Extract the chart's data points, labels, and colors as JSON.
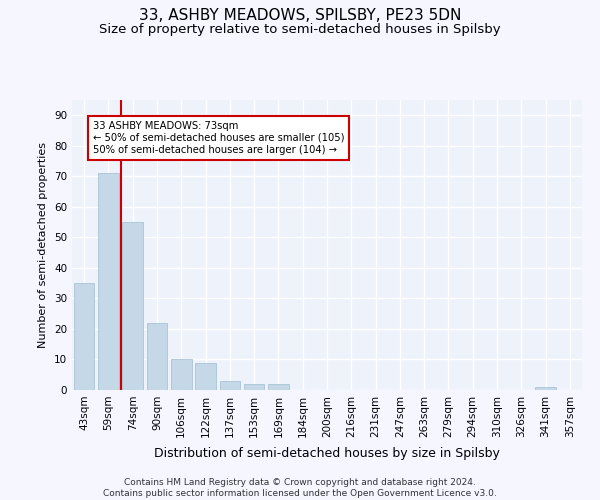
{
  "title1": "33, ASHBY MEADOWS, SPILSBY, PE23 5DN",
  "title2": "Size of property relative to semi-detached houses in Spilsby",
  "xlabel": "Distribution of semi-detached houses by size in Spilsby",
  "ylabel": "Number of semi-detached properties",
  "categories": [
    "43sqm",
    "59sqm",
    "74sqm",
    "90sqm",
    "106sqm",
    "122sqm",
    "137sqm",
    "153sqm",
    "169sqm",
    "184sqm",
    "200sqm",
    "216sqm",
    "231sqm",
    "247sqm",
    "263sqm",
    "279sqm",
    "294sqm",
    "310sqm",
    "326sqm",
    "341sqm",
    "357sqm"
  ],
  "values": [
    35,
    71,
    55,
    22,
    10,
    9,
    3,
    2,
    2,
    0,
    0,
    0,
    0,
    0,
    0,
    0,
    0,
    0,
    0,
    1,
    0
  ],
  "bar_color": "#c5d8e8",
  "bar_edge_color": "#a0bcd0",
  "subject_line_color": "#cc0000",
  "annotation_box_text": "33 ASHBY MEADOWS: 73sqm\n← 50% of semi-detached houses are smaller (105)\n50% of semi-detached houses are larger (104) →",
  "annotation_box_color": "#cc0000",
  "annotation_text_color": "#000000",
  "ylim": [
    0,
    95
  ],
  "yticks": [
    0,
    10,
    20,
    30,
    40,
    50,
    60,
    70,
    80,
    90
  ],
  "background_color": "#eef2fa",
  "grid_color": "#ffffff",
  "footer_text": "Contains HM Land Registry data © Crown copyright and database right 2024.\nContains public sector information licensed under the Open Government Licence v3.0.",
  "title1_fontsize": 11,
  "title2_fontsize": 9.5,
  "xlabel_fontsize": 9,
  "ylabel_fontsize": 8,
  "tick_fontsize": 7.5,
  "footer_fontsize": 6.5
}
